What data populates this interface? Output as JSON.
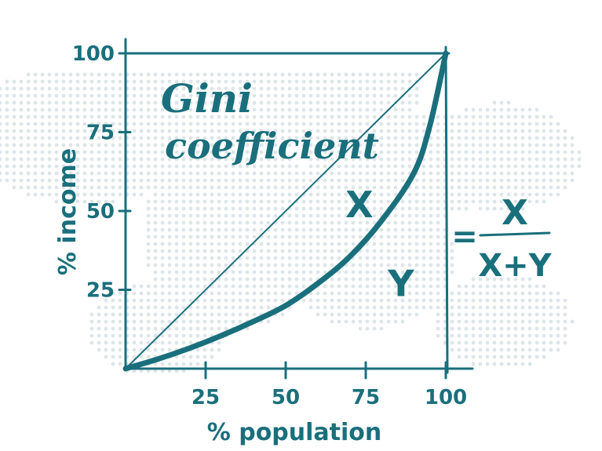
{
  "chart_data": {
    "type": "line",
    "title_line1": "Gini",
    "title_line2": "coefficient",
    "xlabel": "% population",
    "ylabel": "% income",
    "xlim": [
      0,
      100
    ],
    "ylim": [
      0,
      100
    ],
    "x_ticks": [
      "25",
      "50",
      "75",
      "100"
    ],
    "y_ticks": [
      "25",
      "50",
      "75",
      "100"
    ],
    "grid": false,
    "series": [
      {
        "kind": "equality-line",
        "x": [
          0,
          100
        ],
        "y": [
          0,
          100
        ]
      },
      {
        "kind": "lorenz-curve",
        "x": [
          0,
          10,
          20,
          30,
          40,
          50,
          60,
          70,
          80,
          90,
          95,
          100
        ],
        "y": [
          0,
          3,
          6.5,
          10.5,
          15,
          20,
          27,
          35.5,
          47,
          62,
          77,
          100
        ]
      }
    ],
    "annotations": [
      {
        "label": "X",
        "x": 73,
        "y": 48
      },
      {
        "label": "Y",
        "x": 86,
        "y": 23
      }
    ],
    "formula": {
      "prefix": "=",
      "numerator": "X",
      "denominator": "X+Y"
    }
  },
  "colors": {
    "ink": "#1a6f7c",
    "map_dots": "#dde5e8"
  }
}
